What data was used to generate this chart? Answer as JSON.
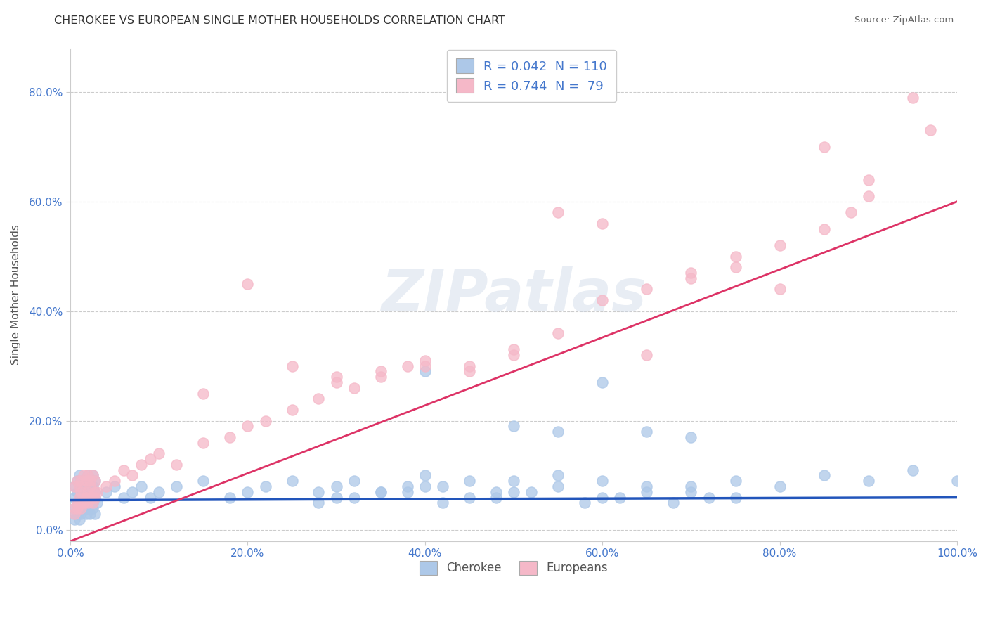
{
  "title": "CHEROKEE VS EUROPEAN SINGLE MOTHER HOUSEHOLDS CORRELATION CHART",
  "source": "Source: ZipAtlas.com",
  "ylabel": "Single Mother Households",
  "xlabel": "",
  "xlim": [
    0.0,
    1.0
  ],
  "ylim": [
    -0.02,
    0.88
  ],
  "yticks": [
    0.0,
    0.2,
    0.4,
    0.6,
    0.8
  ],
  "ytick_labels": [
    "0.0%",
    "20.0%",
    "40.0%",
    "60.0%",
    "80.0%"
  ],
  "xticks": [
    0.0,
    0.2,
    0.4,
    0.6,
    0.8,
    1.0
  ],
  "xtick_labels": [
    "0.0%",
    "20.0%",
    "40.0%",
    "60.0%",
    "80.0%",
    "100.0%"
  ],
  "cherokee_color": "#adc8e8",
  "european_color": "#f5b8c8",
  "cherokee_line_color": "#2255bb",
  "european_line_color": "#dd3366",
  "legend_cherokee_label": "Cherokee",
  "legend_european_label": "Europeans",
  "r_cherokee": "0.042",
  "n_cherokee": "110",
  "r_european": "0.744",
  "n_european": "79",
  "watermark": "ZIPatlas",
  "title_color": "#333333",
  "source_color": "#666666",
  "axis_label_color": "#555555",
  "tick_color": "#4477cc",
  "grid_color": "#cccccc",
  "grid_style": "--",
  "cherokee_line_intercept": 0.055,
  "cherokee_line_slope": 0.005,
  "european_line_intercept": -0.02,
  "european_line_slope": 0.62,
  "cherokee_scatter": {
    "x": [
      0.005,
      0.008,
      0.01,
      0.012,
      0.015,
      0.018,
      0.02,
      0.022,
      0.025,
      0.028,
      0.005,
      0.008,
      0.01,
      0.012,
      0.015,
      0.018,
      0.02,
      0.022,
      0.025,
      0.028,
      0.005,
      0.008,
      0.01,
      0.012,
      0.015,
      0.018,
      0.02,
      0.022,
      0.025,
      0.028,
      0.005,
      0.008,
      0.01,
      0.012,
      0.015,
      0.018,
      0.02,
      0.022,
      0.025,
      0.028,
      0.005,
      0.008,
      0.01,
      0.012,
      0.015,
      0.018,
      0.02,
      0.022,
      0.025,
      0.028,
      0.03,
      0.04,
      0.05,
      0.06,
      0.07,
      0.08,
      0.09,
      0.1,
      0.12,
      0.15,
      0.18,
      0.2,
      0.22,
      0.25,
      0.28,
      0.3,
      0.32,
      0.35,
      0.38,
      0.4,
      0.42,
      0.45,
      0.48,
      0.5,
      0.55,
      0.6,
      0.65,
      0.7,
      0.75,
      0.8,
      0.85,
      0.9,
      0.95,
      1.0,
      0.4,
      0.5,
      0.55,
      0.6,
      0.65,
      0.7,
      0.3,
      0.35,
      0.4,
      0.45,
      0.5,
      0.55,
      0.6,
      0.65,
      0.7,
      0.75,
      0.28,
      0.32,
      0.38,
      0.42,
      0.48,
      0.52,
      0.58,
      0.62,
      0.68,
      0.72
    ],
    "y": [
      0.04,
      0.05,
      0.06,
      0.07,
      0.05,
      0.06,
      0.07,
      0.05,
      0.06,
      0.07,
      0.03,
      0.04,
      0.05,
      0.04,
      0.05,
      0.04,
      0.05,
      0.06,
      0.05,
      0.06,
      0.06,
      0.07,
      0.08,
      0.07,
      0.06,
      0.07,
      0.08,
      0.07,
      0.08,
      0.07,
      0.02,
      0.03,
      0.02,
      0.03,
      0.04,
      0.03,
      0.04,
      0.03,
      0.04,
      0.03,
      0.08,
      0.09,
      0.1,
      0.09,
      0.08,
      0.09,
      0.1,
      0.09,
      0.1,
      0.09,
      0.05,
      0.07,
      0.08,
      0.06,
      0.07,
      0.08,
      0.06,
      0.07,
      0.08,
      0.09,
      0.06,
      0.07,
      0.08,
      0.09,
      0.07,
      0.08,
      0.09,
      0.07,
      0.08,
      0.1,
      0.08,
      0.09,
      0.07,
      0.09,
      0.1,
      0.09,
      0.08,
      0.07,
      0.09,
      0.08,
      0.1,
      0.09,
      0.11,
      0.09,
      0.29,
      0.19,
      0.18,
      0.27,
      0.18,
      0.17,
      0.06,
      0.07,
      0.08,
      0.06,
      0.07,
      0.08,
      0.06,
      0.07,
      0.08,
      0.06,
      0.05,
      0.06,
      0.07,
      0.05,
      0.06,
      0.07,
      0.05,
      0.06,
      0.05,
      0.06
    ]
  },
  "european_scatter": {
    "x": [
      0.005,
      0.008,
      0.01,
      0.012,
      0.015,
      0.018,
      0.02,
      0.022,
      0.025,
      0.028,
      0.005,
      0.008,
      0.01,
      0.012,
      0.015,
      0.018,
      0.02,
      0.022,
      0.025,
      0.028,
      0.005,
      0.008,
      0.01,
      0.012,
      0.015,
      0.018,
      0.02,
      0.022,
      0.025,
      0.028,
      0.03,
      0.04,
      0.05,
      0.06,
      0.07,
      0.08,
      0.09,
      0.1,
      0.12,
      0.15,
      0.18,
      0.2,
      0.22,
      0.25,
      0.28,
      0.3,
      0.32,
      0.35,
      0.38,
      0.4,
      0.45,
      0.5,
      0.55,
      0.6,
      0.65,
      0.7,
      0.75,
      0.8,
      0.85,
      0.9,
      0.95,
      0.97,
      0.15,
      0.2,
      0.25,
      0.3,
      0.35,
      0.4,
      0.45,
      0.5,
      0.55,
      0.6,
      0.65,
      0.7,
      0.75,
      0.8,
      0.85,
      0.88,
      0.9
    ],
    "y": [
      0.04,
      0.05,
      0.06,
      0.07,
      0.05,
      0.06,
      0.07,
      0.08,
      0.06,
      0.07,
      0.03,
      0.04,
      0.05,
      0.04,
      0.05,
      0.06,
      0.05,
      0.06,
      0.05,
      0.06,
      0.08,
      0.09,
      0.08,
      0.09,
      0.1,
      0.09,
      0.1,
      0.09,
      0.1,
      0.09,
      0.07,
      0.08,
      0.09,
      0.11,
      0.1,
      0.12,
      0.13,
      0.14,
      0.12,
      0.16,
      0.17,
      0.19,
      0.2,
      0.22,
      0.24,
      0.27,
      0.26,
      0.28,
      0.3,
      0.31,
      0.29,
      0.32,
      0.58,
      0.56,
      0.32,
      0.46,
      0.48,
      0.44,
      0.7,
      0.64,
      0.79,
      0.73,
      0.25,
      0.45,
      0.3,
      0.28,
      0.29,
      0.3,
      0.3,
      0.33,
      0.36,
      0.42,
      0.44,
      0.47,
      0.5,
      0.52,
      0.55,
      0.58,
      0.61
    ]
  }
}
